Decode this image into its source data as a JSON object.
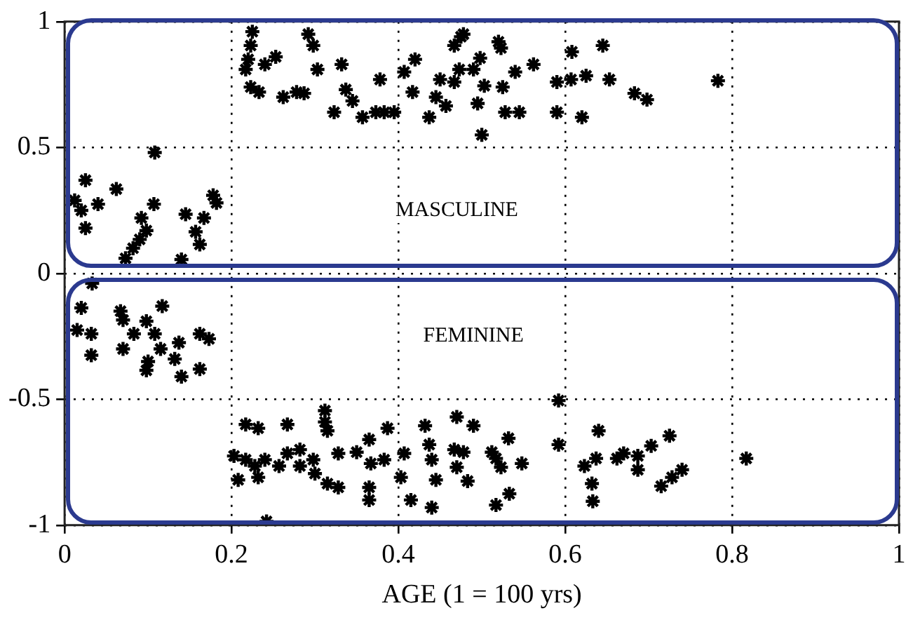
{
  "chart_data": {
    "type": "scatter",
    "xlabel": "AGE (1 = 100 yrs)",
    "xlim": [
      0,
      1
    ],
    "xticks": [
      0,
      0.2,
      0.4,
      0.6,
      0.8,
      1
    ],
    "ylim": [
      -1,
      1
    ],
    "yticks": [
      -1,
      -0.5,
      0,
      0.5,
      1
    ],
    "grid": true,
    "marker": "cross",
    "legend": false,
    "annotations": [
      "MASCULINE",
      "FEMININE"
    ],
    "series": [
      {
        "color": "#000000",
        "x": [
          0.025,
          0.062,
          0.012,
          0.02,
          0.025,
          0.04,
          0.108,
          0.107,
          0.092,
          0.098,
          0.09,
          0.082,
          0.073,
          0.145,
          0.167,
          0.178,
          0.182,
          0.157,
          0.162,
          0.14,
          0.225,
          0.223,
          0.22,
          0.217,
          0.24,
          0.253,
          0.223,
          0.233,
          0.262,
          0.278,
          0.287,
          0.292,
          0.298,
          0.303,
          0.332,
          0.323,
          0.337,
          0.345,
          0.357,
          0.373,
          0.383,
          0.395,
          0.378,
          0.407,
          0.42,
          0.417,
          0.437,
          0.445,
          0.457,
          0.45,
          0.467,
          0.475,
          0.467,
          0.473,
          0.49,
          0.478,
          0.498,
          0.52,
          0.523,
          0.503,
          0.495,
          0.525,
          0.54,
          0.562,
          0.528,
          0.545,
          0.5,
          0.59,
          0.608,
          0.645,
          0.607,
          0.625,
          0.653,
          0.59,
          0.62,
          0.683,
          0.698,
          0.783,
          0.033,
          0.02,
          0.015,
          0.032,
          0.032,
          0.067,
          0.07,
          0.117,
          0.083,
          0.07,
          0.098,
          0.108,
          0.115,
          0.1,
          0.098,
          0.137,
          0.132,
          0.14,
          0.162,
          0.173,
          0.162,
          0.217,
          0.232,
          0.267,
          0.312,
          0.312,
          0.315,
          0.203,
          0.217,
          0.228,
          0.24,
          0.257,
          0.267,
          0.282,
          0.282,
          0.298,
          0.208,
          0.232,
          0.3,
          0.315,
          0.328,
          0.328,
          0.242,
          0.35,
          0.365,
          0.367,
          0.383,
          0.387,
          0.365,
          0.365,
          0.407,
          0.403,
          0.415,
          0.432,
          0.437,
          0.44,
          0.445,
          0.47,
          0.467,
          0.47,
          0.483,
          0.44,
          0.49,
          0.478,
          0.512,
          0.532,
          0.517,
          0.523,
          0.548,
          0.533,
          0.517,
          0.592,
          0.592,
          0.64,
          0.623,
          0.637,
          0.632,
          0.633,
          0.662,
          0.67,
          0.687,
          0.687,
          0.703,
          0.725,
          0.715,
          0.728,
          0.74,
          0.817
        ],
        "values": [
          0.37,
          0.335,
          0.29,
          0.25,
          0.18,
          0.275,
          0.48,
          0.275,
          0.22,
          0.17,
          0.135,
          0.1,
          0.06,
          0.235,
          0.22,
          0.31,
          0.28,
          0.165,
          0.115,
          0.055,
          0.96,
          0.905,
          0.85,
          0.81,
          0.83,
          0.86,
          0.74,
          0.72,
          0.7,
          0.72,
          0.715,
          0.95,
          0.905,
          0.81,
          0.83,
          0.64,
          0.73,
          0.685,
          0.62,
          0.64,
          0.64,
          0.64,
          0.77,
          0.8,
          0.85,
          0.72,
          0.62,
          0.7,
          0.665,
          0.77,
          0.76,
          0.94,
          0.905,
          0.81,
          0.81,
          0.95,
          0.855,
          0.92,
          0.895,
          0.745,
          0.675,
          0.74,
          0.8,
          0.83,
          0.64,
          0.64,
          0.55,
          0.76,
          0.88,
          0.905,
          0.77,
          0.785,
          0.77,
          0.64,
          0.62,
          0.715,
          0.69,
          0.765,
          -0.04,
          -0.137,
          -0.225,
          -0.24,
          -0.325,
          -0.15,
          -0.185,
          -0.13,
          -0.24,
          -0.3,
          -0.19,
          -0.24,
          -0.3,
          -0.35,
          -0.385,
          -0.275,
          -0.34,
          -0.41,
          -0.24,
          -0.26,
          -0.38,
          -0.6,
          -0.615,
          -0.6,
          -0.545,
          -0.59,
          -0.625,
          -0.725,
          -0.74,
          -0.765,
          -0.74,
          -0.765,
          -0.715,
          -0.7,
          -0.765,
          -0.74,
          -0.82,
          -0.81,
          -0.795,
          -0.835,
          -0.85,
          -0.715,
          -0.985,
          -0.71,
          -0.66,
          -0.755,
          -0.74,
          -0.615,
          -0.85,
          -0.9,
          -0.715,
          -0.81,
          -0.9,
          -0.605,
          -0.68,
          -0.74,
          -0.82,
          -0.57,
          -0.7,
          -0.77,
          -0.825,
          -0.93,
          -0.605,
          -0.71,
          -0.71,
          -0.655,
          -0.735,
          -0.77,
          -0.755,
          -0.875,
          -0.92,
          -0.505,
          -0.68,
          -0.625,
          -0.765,
          -0.735,
          -0.835,
          -0.905,
          -0.735,
          -0.715,
          -0.725,
          -0.78,
          -0.685,
          -0.645,
          -0.845,
          -0.81,
          -0.78,
          -0.735
        ]
      }
    ]
  }
}
